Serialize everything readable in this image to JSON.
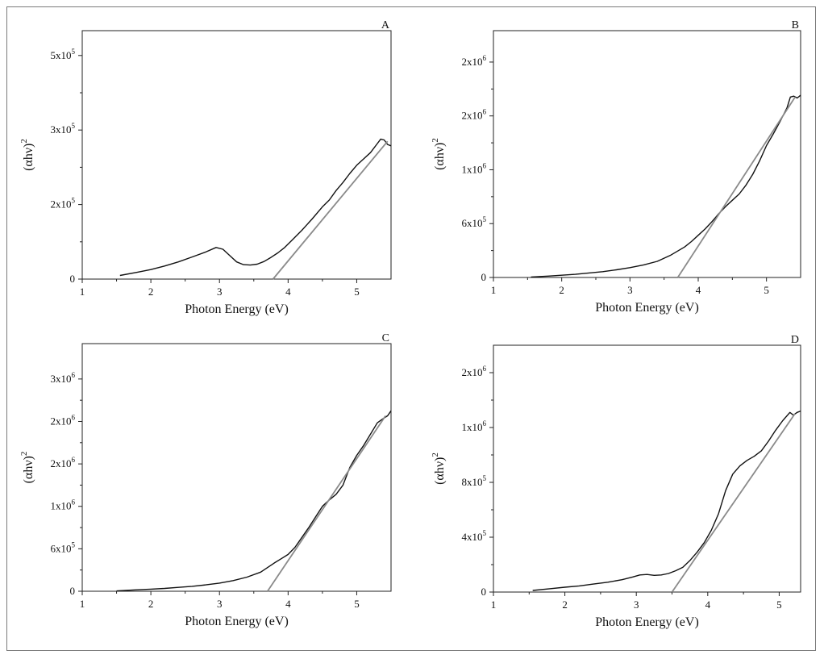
{
  "chart_data": [
    {
      "type": "line",
      "panel": "A",
      "xlabel": "Photon Energy (eV)",
      "ylabel": "(αhν)",
      "ylabel_superscript": "2",
      "xlim": [
        1,
        5.5
      ],
      "ylim": [
        0,
        550000
      ],
      "xticks": [
        "1",
        "2",
        "3",
        "4",
        "5"
      ],
      "ytick_values": [
        0,
        165000,
        330000,
        495000
      ],
      "ytick_labels": [
        {
          "mantissa": "0",
          "exponent": ""
        },
        {
          "mantissa": "2x10",
          "exponent": "5"
        },
        {
          "mantissa": "3x10",
          "exponent": "5"
        },
        {
          "mantissa": "5x10",
          "exponent": "5"
        }
      ],
      "series": [
        {
          "x": [
            1.55,
            1.8,
            2.0,
            2.2,
            2.4,
            2.6,
            2.8,
            2.95,
            3.05,
            3.15,
            3.25,
            3.35,
            3.45,
            3.55,
            3.65,
            3.75,
            3.85,
            3.95,
            4.05,
            4.2,
            4.35,
            4.5,
            4.6,
            4.7,
            4.8,
            4.9,
            5.0,
            5.1,
            5.2,
            5.3,
            5.35,
            5.4,
            5.45,
            5.5
          ],
          "y": [
            8000,
            15000,
            21000,
            29000,
            38000,
            49000,
            60000,
            70000,
            66000,
            52000,
            38000,
            32000,
            31000,
            33000,
            39000,
            48000,
            58000,
            70000,
            85000,
            108000,
            133000,
            160000,
            175000,
            196000,
            214000,
            234000,
            252000,
            266000,
            280000,
            300000,
            310000,
            308000,
            298000,
            295000
          ]
        },
        {
          "x": [
            3.78,
            5.45
          ],
          "y": [
            0,
            305000
          ]
        }
      ]
    },
    {
      "type": "line",
      "panel": "B",
      "xlabel": "Photon Energy (eV)",
      "ylabel": "(αhν)",
      "ylabel_superscript": "2",
      "xlim": [
        1,
        5.5
      ],
      "ylim": [
        0,
        2750000
      ],
      "xticks": [
        "1",
        "2",
        "3",
        "4",
        "5"
      ],
      "ytick_values": [
        0,
        600000,
        1200000,
        1800000,
        2400000
      ],
      "ytick_labels": [
        {
          "mantissa": "0",
          "exponent": ""
        },
        {
          "mantissa": "6x10",
          "exponent": "5"
        },
        {
          "mantissa": "1x10",
          "exponent": "6"
        },
        {
          "mantissa": "2x10",
          "exponent": "6"
        },
        {
          "mantissa": "2x10",
          "exponent": "6"
        }
      ],
      "series": [
        {
          "x": [
            1.55,
            1.8,
            2.0,
            2.2,
            2.4,
            2.6,
            2.8,
            3.0,
            3.2,
            3.4,
            3.6,
            3.8,
            3.9,
            4.0,
            4.1,
            4.2,
            4.3,
            4.4,
            4.5,
            4.6,
            4.7,
            4.8,
            4.9,
            5.0,
            5.1,
            5.2,
            5.3,
            5.35,
            5.4,
            5.45,
            5.5
          ],
          "y": [
            5000,
            15000,
            25000,
            35000,
            50000,
            65000,
            85000,
            110000,
            140000,
            180000,
            250000,
            340000,
            400000,
            470000,
            540000,
            620000,
            710000,
            790000,
            860000,
            930000,
            1030000,
            1150000,
            1300000,
            1470000,
            1600000,
            1740000,
            1890000,
            2010000,
            2020000,
            2000000,
            2030000
          ]
        },
        {
          "x": [
            3.7,
            5.42
          ],
          "y": [
            0,
            2010000
          ]
        }
      ]
    },
    {
      "type": "line",
      "panel": "C",
      "xlabel": "Photon Energy (eV)",
      "ylabel": "(αhν)",
      "ylabel_superscript": "2",
      "xlim": [
        1,
        5.5
      ],
      "ylim": [
        0,
        3500000
      ],
      "xticks": [
        "1",
        "2",
        "3",
        "4",
        "5"
      ],
      "ytick_values": [
        0,
        600000,
        1200000,
        1800000,
        2400000,
        3000000
      ],
      "ytick_labels": [
        {
          "mantissa": "0",
          "exponent": ""
        },
        {
          "mantissa": "6x10",
          "exponent": "5"
        },
        {
          "mantissa": "1x10",
          "exponent": "6"
        },
        {
          "mantissa": "2x10",
          "exponent": "6"
        },
        {
          "mantissa": "2x10",
          "exponent": "6"
        },
        {
          "mantissa": "3x10",
          "exponent": "6"
        }
      ],
      "series": [
        {
          "x": [
            1.5,
            1.8,
            2.0,
            2.2,
            2.4,
            2.6,
            2.8,
            3.0,
            3.2,
            3.4,
            3.6,
            3.8,
            3.9,
            4.0,
            4.1,
            4.2,
            4.3,
            4.4,
            4.5,
            4.6,
            4.7,
            4.8,
            4.9,
            5.0,
            5.1,
            5.2,
            5.3,
            5.4,
            5.45,
            5.5
          ],
          "y": [
            5000,
            20000,
            30000,
            40000,
            55000,
            70000,
            90000,
            115000,
            150000,
            200000,
            270000,
            400000,
            460000,
            520000,
            620000,
            760000,
            900000,
            1050000,
            1200000,
            1290000,
            1370000,
            1500000,
            1750000,
            1920000,
            2060000,
            2220000,
            2380000,
            2450000,
            2480000,
            2550000
          ]
        },
        {
          "x": [
            3.7,
            5.42
          ],
          "y": [
            0,
            2480000
          ]
        }
      ]
    },
    {
      "type": "line",
      "panel": "D",
      "xlabel": "Photon Energy (eV)",
      "ylabel": "(αhν)",
      "ylabel_superscript": "2",
      "xlim": [
        1,
        5.3
      ],
      "ylim": [
        0,
        1800000
      ],
      "xticks": [
        "1",
        "2",
        "3",
        "4",
        "5"
      ],
      "ytick_values": [
        0,
        400000,
        800000,
        1200000,
        1600000
      ],
      "ytick_labels": [
        {
          "mantissa": "0",
          "exponent": ""
        },
        {
          "mantissa": "4x10",
          "exponent": "5"
        },
        {
          "mantissa": "8x10",
          "exponent": "5"
        },
        {
          "mantissa": "1x10",
          "exponent": "6"
        },
        {
          "mantissa": "2x10",
          "exponent": "6"
        }
      ],
      "series": [
        {
          "x": [
            1.55,
            1.8,
            2.0,
            2.2,
            2.4,
            2.6,
            2.8,
            2.95,
            3.05,
            3.15,
            3.25,
            3.35,
            3.45,
            3.55,
            3.65,
            3.75,
            3.85,
            3.95,
            4.05,
            4.15,
            4.25,
            4.35,
            4.45,
            4.55,
            4.65,
            4.75,
            4.85,
            4.95,
            5.05,
            5.15,
            5.2,
            5.25,
            5.3
          ],
          "y": [
            12000,
            25000,
            35000,
            45000,
            58000,
            72000,
            90000,
            110000,
            125000,
            128000,
            122000,
            125000,
            135000,
            155000,
            180000,
            230000,
            290000,
            360000,
            450000,
            570000,
            740000,
            860000,
            920000,
            960000,
            990000,
            1030000,
            1100000,
            1180000,
            1250000,
            1310000,
            1290000,
            1310000,
            1320000
          ]
        },
        {
          "x": [
            3.5,
            5.22
          ],
          "y": [
            0,
            1300000
          ]
        }
      ]
    }
  ]
}
